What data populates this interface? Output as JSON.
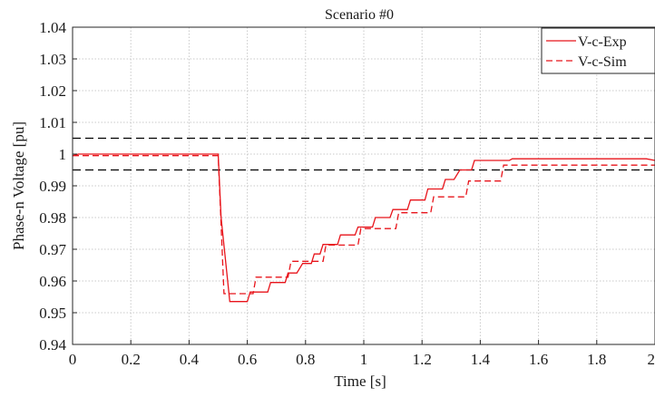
{
  "chart_data": {
    "type": "line",
    "title": "Scenario #0",
    "xlabel": "Time [s]",
    "ylabel": "Phase-n Voltage [pu]",
    "xlim": [
      0,
      2
    ],
    "ylim": [
      0.94,
      1.04
    ],
    "x_ticks": [
      0,
      0.2,
      0.4,
      0.6,
      0.8,
      1,
      1.2,
      1.4,
      1.6,
      1.8,
      2
    ],
    "x_tick_labels": [
      "0",
      "0.2",
      "0.4",
      "0.6",
      "0.8",
      "1",
      "1.2",
      "1.4",
      "1.6",
      "1.8",
      "2"
    ],
    "y_ticks": [
      0.94,
      0.95,
      0.96,
      0.97,
      0.98,
      0.99,
      1,
      1.01,
      1.02,
      1.03,
      1.04
    ],
    "y_tick_labels": [
      "0.94",
      "0.95",
      "0.96",
      "0.97",
      "0.98",
      "0.99",
      "1",
      "1.01",
      "1.02",
      "1.03",
      "1.04"
    ],
    "grid": true,
    "legend_position": "top-right",
    "reference_lines": [
      {
        "y": 1.005,
        "style": "dashed",
        "color": "#000000"
      },
      {
        "y": 0.995,
        "style": "dashed",
        "color": "#000000"
      }
    ],
    "series": [
      {
        "name": "V-c-Exp",
        "color": "#e8141b",
        "style": "solid",
        "x": [
          0,
          0.02,
          0.5,
          0.51,
          0.54,
          0.6,
          0.61,
          0.63,
          0.64,
          0.67,
          0.68,
          0.7,
          0.71,
          0.73,
          0.74,
          0.76,
          0.77,
          0.79,
          0.8,
          0.82,
          0.83,
          0.85,
          0.86,
          0.88,
          0.89,
          0.91,
          0.92,
          0.94,
          0.95,
          0.97,
          0.98,
          1.0,
          1.01,
          1.03,
          1.04,
          1.06,
          1.07,
          1.09,
          1.1,
          1.12,
          1.13,
          1.15,
          1.16,
          1.18,
          1.19,
          1.21,
          1.22,
          1.24,
          1.25,
          1.27,
          1.28,
          1.3,
          1.31,
          1.33,
          1.34,
          1.37,
          1.38,
          1.4,
          1.41,
          1.5,
          1.51,
          1.97,
          2.0
        ],
        "y": [
          0.9995,
          1.0,
          1.0,
          0.98,
          0.9535,
          0.9535,
          0.9565,
          0.9565,
          0.9565,
          0.9565,
          0.9595,
          0.9595,
          0.9595,
          0.9595,
          0.9625,
          0.9625,
          0.9625,
          0.9655,
          0.9655,
          0.9655,
          0.9685,
          0.9685,
          0.9715,
          0.9715,
          0.9715,
          0.9715,
          0.9745,
          0.9745,
          0.9745,
          0.9745,
          0.977,
          0.977,
          0.977,
          0.977,
          0.98,
          0.98,
          0.98,
          0.98,
          0.9825,
          0.9825,
          0.9825,
          0.9825,
          0.9855,
          0.9855,
          0.9855,
          0.9855,
          0.989,
          0.989,
          0.989,
          0.989,
          0.992,
          0.992,
          0.992,
          0.995,
          0.995,
          0.995,
          0.998,
          0.998,
          0.998,
          0.998,
          0.9985,
          0.9985,
          0.998
        ]
      },
      {
        "name": "V-c-Sim",
        "color": "#e8141b",
        "style": "dashed",
        "x": [
          0,
          0.5,
          0.52,
          0.62,
          0.63,
          0.74,
          0.75,
          0.86,
          0.87,
          0.98,
          0.99,
          1.11,
          1.12,
          1.23,
          1.24,
          1.35,
          1.36,
          1.47,
          1.48,
          2.0
        ],
        "y": [
          0.9995,
          0.9995,
          0.956,
          0.956,
          0.9612,
          0.9612,
          0.9662,
          0.9662,
          0.9713,
          0.9713,
          0.9765,
          0.9765,
          0.9815,
          0.9815,
          0.9865,
          0.9865,
          0.9915,
          0.9915,
          0.9965,
          0.9965
        ]
      }
    ]
  }
}
